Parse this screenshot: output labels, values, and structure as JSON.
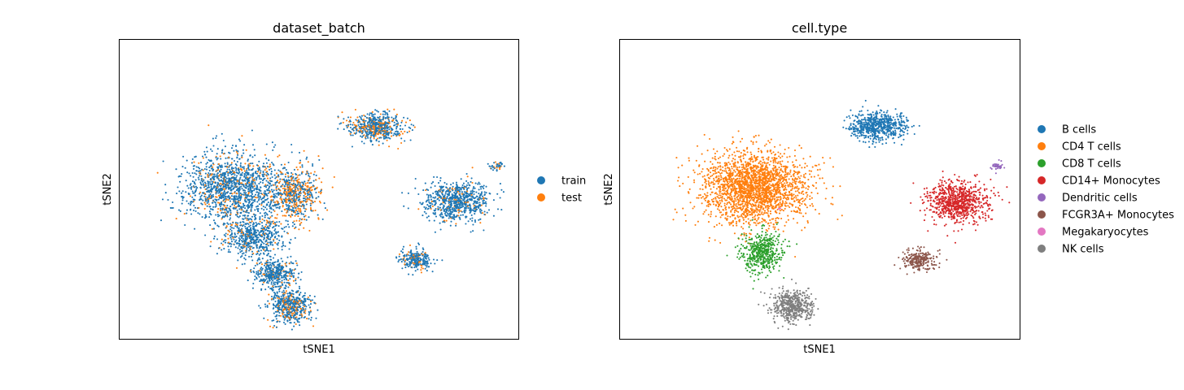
{
  "chart_data": [
    {
      "type": "scatter",
      "title": "dataset_batch",
      "xlabel": "tSNE1",
      "ylabel": "tSNE2",
      "grid": false,
      "legend_position": "right",
      "series": [
        {
          "name": "train",
          "color": "#1f77b4"
        },
        {
          "name": "test",
          "color": "#ff7f0e"
        }
      ],
      "clusters": [
        {
          "x": -14,
          "y": 2,
          "sx": 12,
          "sy": 9,
          "n": 1400,
          "test_frac": 0.15
        },
        {
          "x": 3,
          "y": 0,
          "sx": 7,
          "sy": 7,
          "n": 650,
          "test_frac": 0.5
        },
        {
          "x": -8,
          "y": -12,
          "sx": 7,
          "sy": 5,
          "n": 550,
          "test_frac": 0.1
        },
        {
          "x": -2,
          "y": -22,
          "sx": 5,
          "sy": 4,
          "n": 400,
          "test_frac": 0.1
        },
        {
          "x": 2,
          "y": -31,
          "sx": 5,
          "sy": 4,
          "n": 500,
          "test_frac": 0.25
        },
        {
          "x": 26,
          "y": 19,
          "sx": 7,
          "sy": 3.5,
          "n": 600,
          "test_frac": 0.3
        },
        {
          "x": 48,
          "y": -2,
          "sx": 8,
          "sy": 5,
          "n": 750,
          "test_frac": 0.1
        },
        {
          "x": 37,
          "y": -18,
          "sx": 4,
          "sy": 2.5,
          "n": 250,
          "test_frac": 0.15
        },
        {
          "x": 59,
          "y": 8,
          "sx": 1.5,
          "sy": 1,
          "n": 40,
          "test_frac": 0.3
        }
      ],
      "xlim": [
        -45,
        65
      ],
      "ylim": [
        -40,
        43
      ]
    },
    {
      "type": "scatter",
      "title": "cell.type",
      "xlabel": "tSNE1",
      "ylabel": "tSNE2",
      "grid": false,
      "legend_position": "right",
      "series": [
        {
          "name": "B cells",
          "color": "#1f77b4",
          "cx": 26,
          "cy": 19,
          "sx": 7,
          "sy": 3.5,
          "n": 650
        },
        {
          "name": "CD4 T cells",
          "color": "#ff7f0e",
          "cx": -8,
          "cy": 2,
          "sx": 13,
          "sy": 9,
          "n": 2200
        },
        {
          "name": "CD8 T cells",
          "color": "#2ca02c",
          "cx": -6,
          "cy": -16,
          "sx": 5,
          "sy": 5,
          "n": 500
        },
        {
          "name": "CD14+ Monocytes",
          "color": "#d62728",
          "cx": 48,
          "cy": -2,
          "sx": 8,
          "sy": 5,
          "n": 800
        },
        {
          "name": "Dendritic cells",
          "color": "#9467bd",
          "cx": 59,
          "cy": 8,
          "sx": 1.5,
          "sy": 1,
          "n": 40
        },
        {
          "name": "FCGR3A+ Monocytes",
          "color": "#8c564b",
          "cx": 37,
          "cy": -18,
          "sx": 4,
          "sy": 2.5,
          "n": 250
        },
        {
          "name": "Megakaryocytes",
          "color": "#e377c2",
          "cx": -1,
          "cy": -4,
          "sx": 0.4,
          "sy": 0.4,
          "n": 4
        },
        {
          "name": "NK cells",
          "color": "#7f7f7f",
          "cx": 2,
          "cy": -31,
          "sx": 5,
          "sy": 4,
          "n": 500
        }
      ],
      "xlim": [
        -45,
        65
      ],
      "ylim": [
        -40,
        43
      ]
    }
  ]
}
